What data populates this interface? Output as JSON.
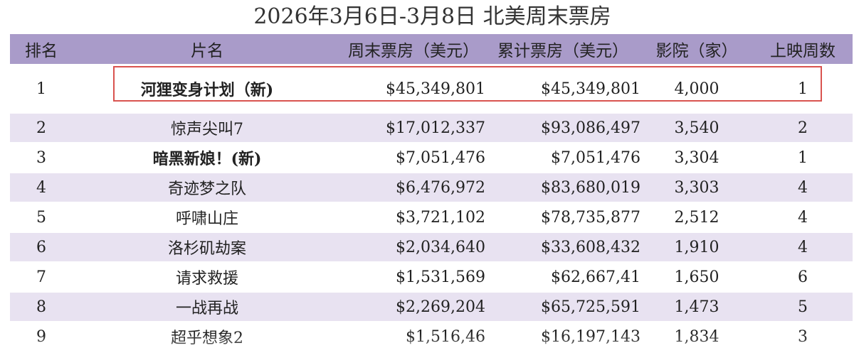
{
  "title": "2026年3月6日-3月8日  北美周末票房",
  "headers": {
    "rank": "排名",
    "film": "片名",
    "weekend": "周末票房（美元）",
    "total": "累计票房（美元）",
    "theaters": "影院（家）",
    "weeks": "上映周数"
  },
  "rows": [
    {
      "rank": "1",
      "film": "河狸变身计划（新)",
      "weekend": "$45,349,801",
      "total": "$45,349,801",
      "theaters": "4,000",
      "weeks": "1"
    },
    {
      "rank": "2",
      "film": "惊声尖叫7",
      "weekend": "$17,012,337",
      "total": "$93,086,497",
      "theaters": "3,540",
      "weeks": "2"
    },
    {
      "rank": "3",
      "film": "暗黑新娘！(新)",
      "weekend": "$7,051,476",
      "total": "$7,051,476",
      "theaters": "3,304",
      "weeks": "1"
    },
    {
      "rank": "4",
      "film": "奇迹梦之队",
      "weekend": "$6,476,972",
      "total": "$83,680,019",
      "theaters": "3,303",
      "weeks": "4"
    },
    {
      "rank": "5",
      "film": "呼啸山庄",
      "weekend": "$3,721,102",
      "total": "$78,735,877",
      "theaters": "2,512",
      "weeks": "4"
    },
    {
      "rank": "6",
      "film": "洛杉矶劫案",
      "weekend": "$2,034,640",
      "total": "$33,608,432",
      "theaters": "1,910",
      "weeks": "4"
    },
    {
      "rank": "7",
      "film": "请求救援",
      "weekend": "$1,531,569",
      "total": "$62,667,41",
      "theaters": "1,650",
      "weeks": "6"
    },
    {
      "rank": "8",
      "film": "一战再战",
      "weekend": "$2,269,204",
      "total": "$65,725,591",
      "theaters": "1,473",
      "weeks": "5"
    },
    {
      "rank": "9",
      "film": "超乎想象2",
      "weekend": "$1,516,46",
      "total": "$16,197,143",
      "theaters": "1,834",
      "weeks": "3"
    }
  ],
  "colors": {
    "header_bg": "#a99bc9",
    "stripe_bg": "#e8e2f1",
    "highlight_border": "#d9534f"
  }
}
